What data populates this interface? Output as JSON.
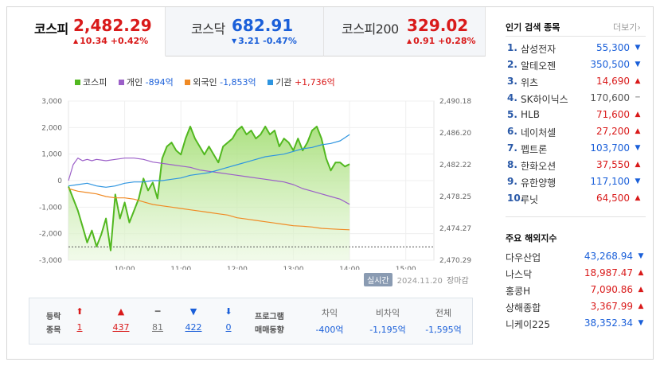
{
  "tabs": [
    {
      "name": "코스피",
      "value": "2,482.29",
      "change": "10.34 +0.42%",
      "dir": "up"
    },
    {
      "name": "코스닥",
      "value": "682.91",
      "change": "3.21 -0.47%",
      "dir": "down"
    },
    {
      "name": "코스피200",
      "value": "329.02",
      "change": "0.91 +0.28%",
      "dir": "up"
    }
  ],
  "legend": {
    "kospi": "코스피",
    "individual": "개인",
    "individual_val": "-894억",
    "foreign": "외국인",
    "foreign_val": "-1,853억",
    "institution": "기관",
    "institution_val": "+1,736억"
  },
  "colors": {
    "kospi": "#52b820",
    "individual": "#9b5fc8",
    "foreign": "#f08a24",
    "institution": "#2e95e0",
    "up": "#d91a1a",
    "down": "#1a5fd9"
  },
  "chart_data": {
    "type": "line",
    "x_ticks": [
      "10:00",
      "11:00",
      "12:00",
      "13:00",
      "14:00",
      "15:00"
    ],
    "left_ticks": [
      "3,000",
      "2,000",
      "1,000",
      "0",
      "-1,000",
      "-2,000",
      "-3,000"
    ],
    "right_ticks": [
      "2,490.18",
      "2,486.20",
      "2,482.22",
      "2,478.25",
      "2,474.27",
      "2,470.29"
    ],
    "left_ylim": [
      -3000,
      3000
    ],
    "right_ylim": [
      2470.29,
      2490.18
    ],
    "x_range": [
      "09:00",
      "15:30"
    ],
    "prev_close": 2471.95,
    "series": [
      {
        "name": "코스피",
        "axis": "right",
        "points": [
          [
            0,
            2479.5
          ],
          [
            5,
            2478.0
          ],
          [
            10,
            2476.5
          ],
          [
            15,
            2474.5
          ],
          [
            20,
            2472.5
          ],
          [
            25,
            2474.0
          ],
          [
            30,
            2472.0
          ],
          [
            35,
            2473.5
          ],
          [
            40,
            2475.5
          ],
          [
            45,
            2471.5
          ],
          [
            50,
            2478.5
          ],
          [
            55,
            2475.5
          ],
          [
            60,
            2477.5
          ],
          [
            65,
            2475.0
          ],
          [
            70,
            2476.5
          ],
          [
            75,
            2478.0
          ],
          [
            80,
            2480.5
          ],
          [
            85,
            2479.0
          ],
          [
            90,
            2480.0
          ],
          [
            95,
            2478.0
          ],
          [
            100,
            2483.0
          ],
          [
            105,
            2484.5
          ],
          [
            110,
            2485.0
          ],
          [
            115,
            2484.0
          ],
          [
            120,
            2483.5
          ],
          [
            125,
            2485.5
          ],
          [
            130,
            2487.0
          ],
          [
            135,
            2485.5
          ],
          [
            140,
            2484.5
          ],
          [
            145,
            2483.5
          ],
          [
            150,
            2484.5
          ],
          [
            155,
            2483.5
          ],
          [
            160,
            2482.5
          ],
          [
            165,
            2484.5
          ],
          [
            170,
            2485.0
          ],
          [
            175,
            2485.5
          ],
          [
            180,
            2486.5
          ],
          [
            185,
            2487.0
          ],
          [
            190,
            2486.0
          ],
          [
            195,
            2486.5
          ],
          [
            200,
            2485.5
          ],
          [
            205,
            2486.0
          ],
          [
            210,
            2487.0
          ],
          [
            215,
            2486.0
          ],
          [
            220,
            2486.5
          ],
          [
            225,
            2484.5
          ],
          [
            230,
            2485.5
          ],
          [
            235,
            2485.0
          ],
          [
            240,
            2484.0
          ],
          [
            245,
            2485.5
          ],
          [
            250,
            2484.0
          ],
          [
            255,
            2485.0
          ],
          [
            260,
            2486.5
          ],
          [
            265,
            2487.0
          ],
          [
            270,
            2485.5
          ],
          [
            275,
            2483.0
          ],
          [
            280,
            2481.5
          ],
          [
            285,
            2482.5
          ],
          [
            290,
            2482.5
          ],
          [
            295,
            2482.0
          ],
          [
            300,
            2482.29
          ]
        ]
      },
      {
        "name": "개인",
        "value": "-894억",
        "axis": "left",
        "points": [
          [
            0,
            0
          ],
          [
            5,
            600
          ],
          [
            10,
            850
          ],
          [
            15,
            750
          ],
          [
            20,
            800
          ],
          [
            25,
            750
          ],
          [
            30,
            800
          ],
          [
            40,
            750
          ],
          [
            50,
            800
          ],
          [
            60,
            850
          ],
          [
            70,
            850
          ],
          [
            80,
            800
          ],
          [
            90,
            700
          ],
          [
            100,
            650
          ],
          [
            110,
            600
          ],
          [
            120,
            550
          ],
          [
            130,
            500
          ],
          [
            140,
            400
          ],
          [
            150,
            350
          ],
          [
            160,
            300
          ],
          [
            170,
            250
          ],
          [
            180,
            200
          ],
          [
            190,
            150
          ],
          [
            200,
            100
          ],
          [
            210,
            50
          ],
          [
            220,
            0
          ],
          [
            230,
            -50
          ],
          [
            240,
            -150
          ],
          [
            250,
            -300
          ],
          [
            260,
            -400
          ],
          [
            270,
            -500
          ],
          [
            280,
            -600
          ],
          [
            290,
            -700
          ],
          [
            300,
            -894
          ]
        ]
      },
      {
        "name": "외국인",
        "value": "-1,853억",
        "axis": "left",
        "points": [
          [
            0,
            -300
          ],
          [
            10,
            -400
          ],
          [
            20,
            -450
          ],
          [
            30,
            -500
          ],
          [
            40,
            -600
          ],
          [
            50,
            -650
          ],
          [
            60,
            -650
          ],
          [
            70,
            -700
          ],
          [
            80,
            -800
          ],
          [
            90,
            -900
          ],
          [
            100,
            -950
          ],
          [
            110,
            -1000
          ],
          [
            120,
            -1050
          ],
          [
            130,
            -1100
          ],
          [
            140,
            -1150
          ],
          [
            150,
            -1200
          ],
          [
            160,
            -1250
          ],
          [
            170,
            -1300
          ],
          [
            180,
            -1400
          ],
          [
            190,
            -1450
          ],
          [
            200,
            -1500
          ],
          [
            210,
            -1550
          ],
          [
            220,
            -1600
          ],
          [
            230,
            -1650
          ],
          [
            240,
            -1700
          ],
          [
            250,
            -1720
          ],
          [
            260,
            -1750
          ],
          [
            270,
            -1800
          ],
          [
            280,
            -1820
          ],
          [
            290,
            -1840
          ],
          [
            300,
            -1853
          ]
        ]
      },
      {
        "name": "기관",
        "value": "+1,736억",
        "axis": "left",
        "points": [
          [
            0,
            -200
          ],
          [
            10,
            -150
          ],
          [
            20,
            -100
          ],
          [
            30,
            -200
          ],
          [
            40,
            -250
          ],
          [
            50,
            -200
          ],
          [
            60,
            -100
          ],
          [
            70,
            -50
          ],
          [
            80,
            -50
          ],
          [
            90,
            0
          ],
          [
            100,
            0
          ],
          [
            110,
            50
          ],
          [
            120,
            100
          ],
          [
            130,
            200
          ],
          [
            140,
            250
          ],
          [
            150,
            300
          ],
          [
            160,
            400
          ],
          [
            170,
            500
          ],
          [
            180,
            600
          ],
          [
            190,
            700
          ],
          [
            200,
            800
          ],
          [
            210,
            900
          ],
          [
            220,
            950
          ],
          [
            230,
            1000
          ],
          [
            240,
            1100
          ],
          [
            250,
            1200
          ],
          [
            260,
            1250
          ],
          [
            270,
            1350
          ],
          [
            280,
            1400
          ],
          [
            290,
            1500
          ],
          [
            300,
            1736
          ]
        ]
      }
    ]
  },
  "timestamp": {
    "live": "실시간",
    "date": "2024.11.20",
    "status": "장마감"
  },
  "breadth": {
    "label1": "등락",
    "label2": "종목",
    "limit_up": "1",
    "up": "437",
    "flat": "81",
    "down": "422",
    "limit_down": "0"
  },
  "program": {
    "label1": "프로그램",
    "label2": "매매동향",
    "cols": [
      {
        "h": "차익",
        "v": "-400억"
      },
      {
        "h": "비차익",
        "v": "-1,195억"
      },
      {
        "h": "전체",
        "v": "-1,595억"
      }
    ]
  },
  "popular": {
    "title": "인기 검색 종목",
    "more": "더보기",
    "items": [
      {
        "no": "1.",
        "name": "삼성전자",
        "price": "55,300",
        "dir": "down"
      },
      {
        "no": "2.",
        "name": "알테오젠",
        "price": "350,500",
        "dir": "down"
      },
      {
        "no": "3.",
        "name": "위츠",
        "price": "14,690",
        "dir": "up"
      },
      {
        "no": "4.",
        "name": "SK하이닉스",
        "price": "170,600",
        "dir": "flat"
      },
      {
        "no": "5.",
        "name": "HLB",
        "price": "71,600",
        "dir": "up"
      },
      {
        "no": "6.",
        "name": "네이처셀",
        "price": "27,200",
        "dir": "up"
      },
      {
        "no": "7.",
        "name": "펩트론",
        "price": "103,700",
        "dir": "down"
      },
      {
        "no": "8.",
        "name": "한화오션",
        "price": "37,550",
        "dir": "up"
      },
      {
        "no": "9.",
        "name": "유한양행",
        "price": "117,100",
        "dir": "down"
      },
      {
        "no": "10.",
        "name": "루닛",
        "price": "64,500",
        "dir": "up"
      }
    ]
  },
  "global": {
    "title": "주요 해외지수",
    "items": [
      {
        "name": "다우산업",
        "price": "43,268.94",
        "dir": "down"
      },
      {
        "name": "나스닥",
        "price": "18,987.47",
        "dir": "up"
      },
      {
        "name": "홍콩H",
        "price": "7,090.86",
        "dir": "up"
      },
      {
        "name": "상해종합",
        "price": "3,367.99",
        "dir": "up"
      },
      {
        "name": "니케이225",
        "price": "38,352.34",
        "dir": "down"
      }
    ]
  }
}
